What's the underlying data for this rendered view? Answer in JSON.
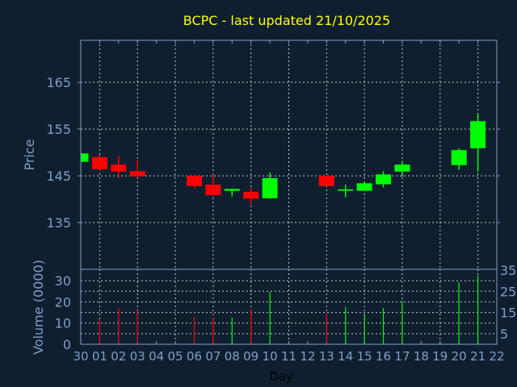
{
  "chart_data": {
    "type": "candlestick",
    "title": "BCPC - last updated 21/10/2025",
    "xlabel": "Day",
    "ylabel": "Price",
    "volume_ylabel": "Volume (0000)",
    "x_tick_labels": [
      "30",
      "01",
      "02",
      "03",
      "04",
      "05",
      "06",
      "07",
      "08",
      "09",
      "10",
      "11",
      "12",
      "13",
      "14",
      "15",
      "16",
      "17",
      "18",
      "19",
      "20",
      "21",
      "22"
    ],
    "price_ylim": [
      125,
      174
    ],
    "price_yticks": [
      135,
      145,
      155,
      165
    ],
    "volume_ylim": [
      0,
      35
    ],
    "volume_yticks": [
      0,
      5,
      10,
      15,
      20,
      25,
      30,
      35
    ],
    "grid": true,
    "colors": {
      "background": "#0f1f30",
      "up": "#00ff00",
      "down": "#ff0000",
      "title": "#ffff00",
      "axis": "#7f9fc8",
      "grid": "#c8c8c8"
    },
    "candles": [
      {
        "day": "30",
        "open": 148.0,
        "high": 149.8,
        "low": 148.0,
        "close": 149.8,
        "volume": null
      },
      {
        "day": "01",
        "open": 149.0,
        "high": 149.5,
        "low": 146.1,
        "close": 146.4,
        "volume": 11.5
      },
      {
        "day": "02",
        "open": 147.4,
        "high": 149.3,
        "low": 144.5,
        "close": 145.9,
        "volume": 17.1
      },
      {
        "day": "03",
        "open": 146.0,
        "high": 148.4,
        "low": 144.6,
        "close": 144.9,
        "volume": 15.8
      },
      {
        "day": "06",
        "open": 145.0,
        "high": 145.0,
        "low": 142.3,
        "close": 142.8,
        "volume": 13.0
      },
      {
        "day": "07",
        "open": 143.1,
        "high": 145.3,
        "low": 140.6,
        "close": 140.9,
        "volume": 12.5
      },
      {
        "day": "08",
        "open": 141.8,
        "high": 142.2,
        "low": 140.6,
        "close": 142.2,
        "volume": 12.5
      },
      {
        "day": "09",
        "open": 141.6,
        "high": 142.4,
        "low": 138.8,
        "close": 140.1,
        "volume": 16.6
      },
      {
        "day": "10",
        "open": 140.2,
        "high": 145.7,
        "low": 140.1,
        "close": 144.5,
        "volume": 24.7
      },
      {
        "day": "13",
        "open": 145.0,
        "high": 145.0,
        "low": 142.8,
        "close": 142.8,
        "volume": 14.4
      },
      {
        "day": "14",
        "open": 141.8,
        "high": 143.1,
        "low": 140.4,
        "close": 142.1,
        "volume": 17.6
      },
      {
        "day": "15",
        "open": 141.8,
        "high": 143.8,
        "low": 141.8,
        "close": 143.4,
        "volume": 14.0
      },
      {
        "day": "16",
        "open": 143.2,
        "high": 146.0,
        "low": 142.5,
        "close": 145.3,
        "volume": 17.1
      },
      {
        "day": "17",
        "open": 145.9,
        "high": 148.2,
        "low": 144.8,
        "close": 147.4,
        "volume": 20.4
      },
      {
        "day": "20",
        "open": 147.3,
        "high": 150.9,
        "low": 146.3,
        "close": 150.5,
        "volume": 29.3
      },
      {
        "day": "21",
        "open": 150.9,
        "high": 158.2,
        "low": 145.9,
        "close": 156.7,
        "volume": 32.4
      }
    ]
  }
}
